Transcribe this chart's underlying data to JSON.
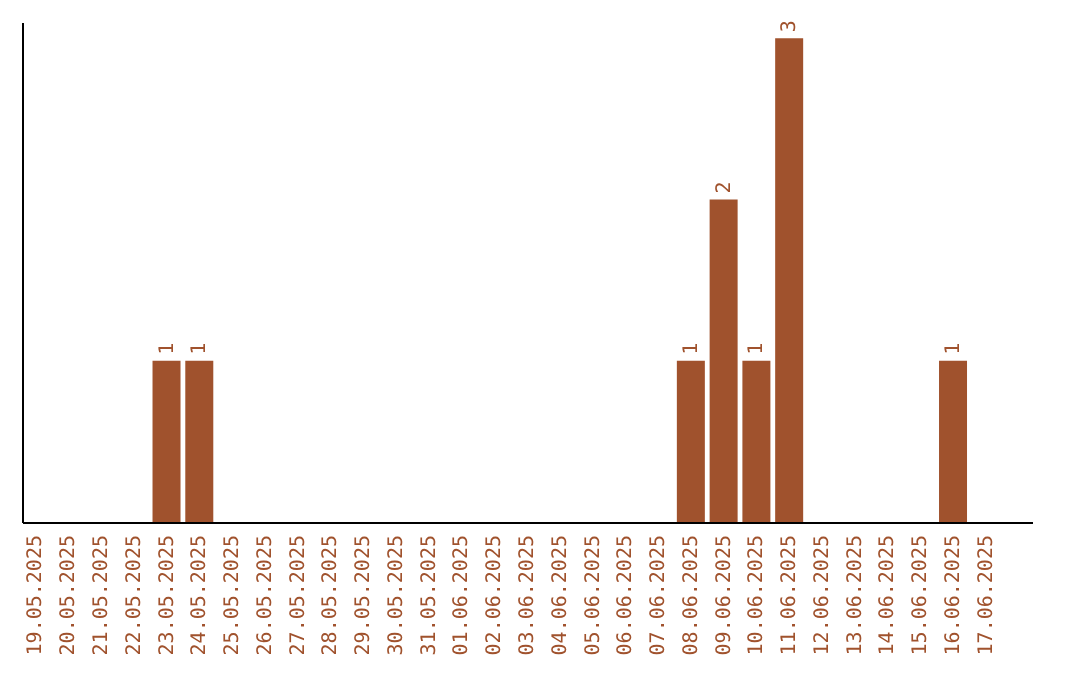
{
  "chart_data": {
    "type": "bar",
    "categories": [
      "19.05.2025",
      "20.05.2025",
      "21.05.2025",
      "22.05.2025",
      "23.05.2025",
      "24.05.2025",
      "25.05.2025",
      "26.05.2025",
      "27.05.2025",
      "28.05.2025",
      "29.05.2025",
      "30.05.2025",
      "31.05.2025",
      "01.06.2025",
      "02.06.2025",
      "03.06.2025",
      "04.06.2025",
      "05.06.2025",
      "06.06.2025",
      "07.06.2025",
      "08.06.2025",
      "09.06.2025",
      "10.06.2025",
      "11.06.2025",
      "12.06.2025",
      "13.06.2025",
      "14.06.2025",
      "15.06.2025",
      "16.06.2025",
      "17.06.2025"
    ],
    "values": [
      0,
      0,
      0,
      0,
      1,
      1,
      0,
      0,
      0,
      0,
      0,
      0,
      0,
      0,
      0,
      0,
      0,
      0,
      0,
      0,
      1,
      2,
      1,
      3,
      0,
      0,
      0,
      0,
      1,
      0
    ],
    "value_labels": [
      null,
      null,
      null,
      null,
      "1",
      "1",
      null,
      null,
      null,
      null,
      null,
      null,
      null,
      null,
      null,
      null,
      null,
      null,
      null,
      null,
      "1",
      "2",
      "1",
      "3",
      null,
      null,
      null,
      null,
      "1",
      null
    ],
    "color": "#a0522d",
    "ylim": [
      0,
      3.1
    ],
    "tick_labels": "x",
    "grid": false
  }
}
